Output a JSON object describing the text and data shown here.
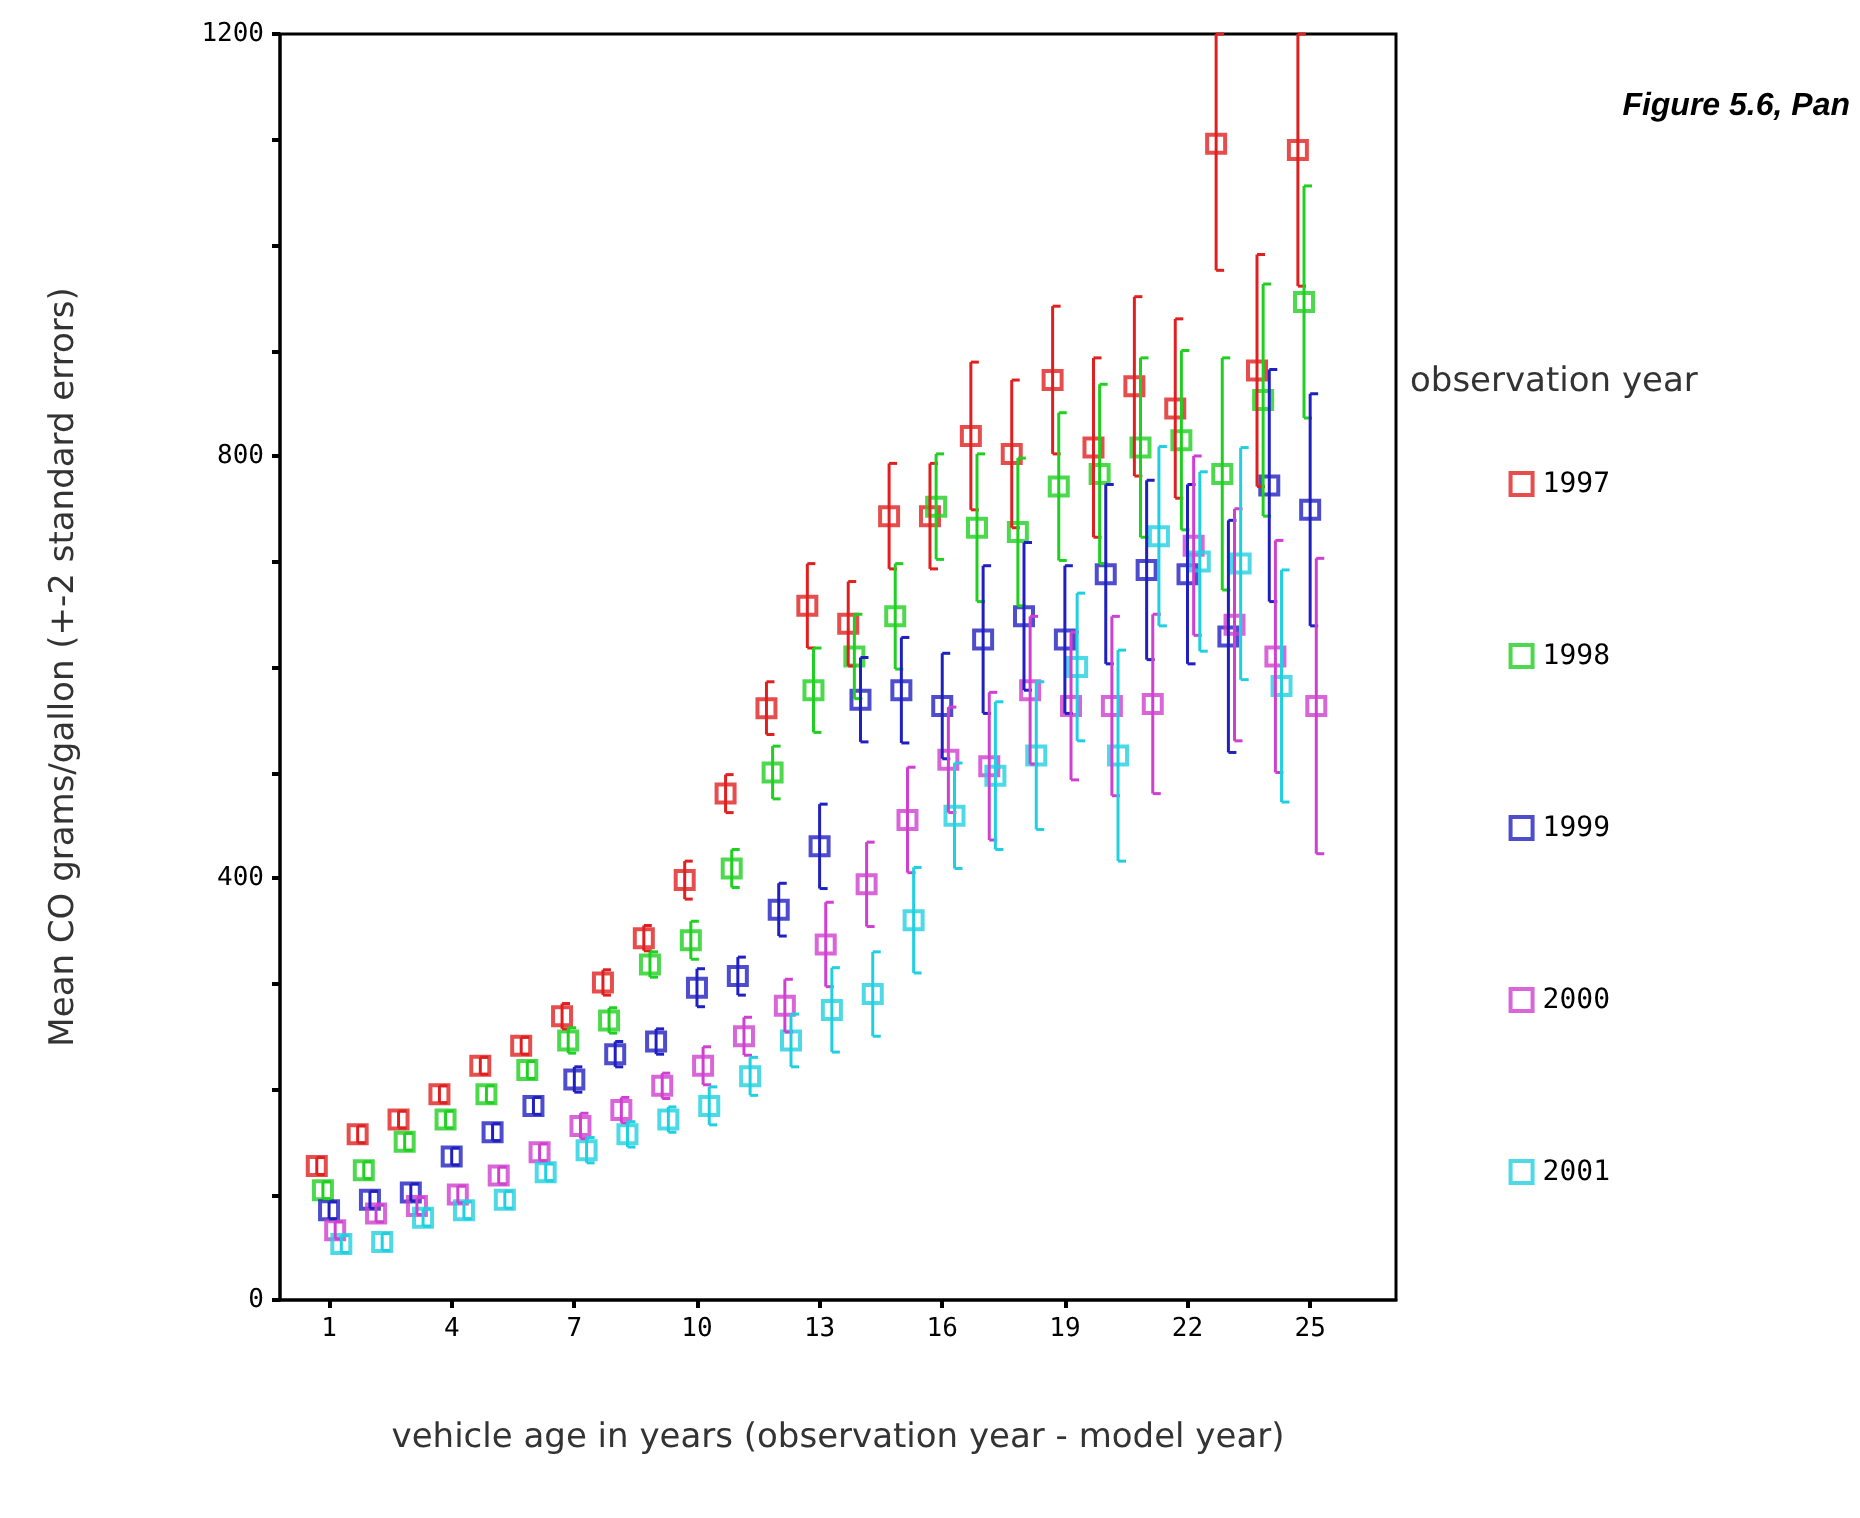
{
  "chart_data": {
    "type": "scatter",
    "title": "Figure 5.6, Pan",
    "xlabel": "vehicle age in years (observation year - model year)",
    "ylabel": "Mean CO grams/gallon (+-2 standard errors)",
    "legend_title": "observation year",
    "legend": "right",
    "marker": "square",
    "grid": false,
    "xlim": [
      -0.2,
      27.1
    ],
    "xticks": [
      1,
      4,
      7,
      10,
      13,
      16,
      19,
      22,
      25
    ],
    "ylim": [
      0,
      1200
    ],
    "yticks": [
      0,
      {
        "value": 100,
        "label": null
      },
      {
        "value": 200,
        "label": null
      },
      {
        "value": 300,
        "label": null
      },
      400,
      {
        "value": 500,
        "label": null
      },
      {
        "value": 600,
        "label": null
      },
      {
        "value": 700,
        "label": null
      },
      800,
      {
        "value": 900,
        "label": null
      },
      {
        "value": 1000,
        "label": null
      },
      {
        "value": 1100,
        "label": null
      },
      1200
    ],
    "series": [
      {
        "name": "1997",
        "color": "#e02020",
        "x": [
          0.7,
          1.7,
          2.7,
          3.7,
          4.7,
          5.7,
          6.7,
          7.7,
          8.7,
          9.7,
          10.7,
          11.7,
          12.7,
          13.7,
          14.7,
          15.7,
          16.7,
          17.7,
          18.7,
          19.7,
          20.7,
          21.7,
          22.7,
          23.7,
          24.7
        ],
        "values": [
          127,
          157,
          171,
          195,
          222,
          241,
          269,
          301,
          343,
          398,
          480,
          561,
          658,
          641,
          743,
          743,
          819,
          802,
          872,
          808,
          866,
          845,
          1096,
          881,
          1090
        ],
        "errors": [
          8,
          8,
          8,
          8,
          8,
          8,
          12,
          12,
          12,
          18,
          18,
          25,
          40,
          40,
          50,
          50,
          70,
          70,
          70,
          85,
          85,
          85,
          [
            976,
            1200
          ],
          110,
          [
            961,
            1200
          ]
        ]
      },
      {
        "name": "1998",
        "color": "#20d020",
        "x": [
          0.85,
          1.85,
          2.85,
          3.85,
          4.85,
          5.85,
          6.85,
          7.85,
          8.85,
          9.85,
          10.85,
          11.85,
          12.85,
          13.85,
          14.85,
          15.85,
          16.85,
          17.85,
          18.85,
          19.85,
          20.85,
          21.85,
          22.85,
          23.85,
          24.85
        ],
        "values": [
          104,
          123,
          150,
          171,
          195,
          218,
          246,
          265,
          318,
          341,
          409,
          500,
          578,
          610,
          648,
          752,
          732,
          728,
          771,
          783,
          808,
          815,
          783,
          853,
          946
        ],
        "errors": [
          8,
          8,
          8,
          8,
          8,
          8,
          12,
          12,
          12,
          18,
          18,
          25,
          40,
          40,
          50,
          50,
          70,
          70,
          70,
          85,
          85,
          85,
          110,
          110,
          110
        ]
      },
      {
        "name": "1999",
        "color": "#2020c0",
        "x": [
          1,
          2,
          3,
          4,
          5,
          6,
          7,
          8,
          9,
          10,
          11,
          12,
          13,
          14,
          15,
          16,
          17,
          18,
          19,
          20,
          21,
          22,
          23,
          24,
          25
        ],
        "values": [
          85,
          95,
          102,
          136,
          159,
          184,
          209,
          233,
          245,
          296,
          307,
          370,
          430,
          569,
          578,
          563,
          626,
          648,
          626,
          688,
          692,
          688,
          629,
          772,
          749
        ],
        "errors": [
          8,
          8,
          8,
          8,
          8,
          8,
          12,
          12,
          12,
          18,
          18,
          25,
          40,
          40,
          50,
          50,
          70,
          70,
          70,
          85,
          85,
          85,
          110,
          110,
          110
        ]
      },
      {
        "name": "2000",
        "color": "#d040d0",
        "x": [
          1.15,
          2.15,
          3.15,
          4.15,
          5.15,
          6.15,
          7.15,
          8.15,
          9.15,
          10.15,
          11.15,
          12.15,
          13.15,
          14.15,
          15.15,
          16.15,
          17.15,
          18.15,
          19.15,
          20.15,
          21.15,
          22.15,
          23.15,
          24.15,
          25.15
        ],
        "values": [
          66,
          82,
          89,
          100,
          118,
          140,
          165,
          180,
          203,
          222,
          250,
          279,
          337,
          394,
          455,
          512,
          506,
          578,
          563,
          563,
          565,
          715,
          640,
          610,
          563
        ],
        "errors": [
          8,
          8,
          8,
          8,
          8,
          8,
          12,
          12,
          12,
          18,
          18,
          25,
          40,
          40,
          50,
          50,
          70,
          70,
          70,
          85,
          85,
          85,
          110,
          110,
          140
        ]
      },
      {
        "name": "2001",
        "color": "#20d0e0",
        "x": [
          1.3,
          2.3,
          3.3,
          4.3,
          5.3,
          6.3,
          7.3,
          8.3,
          9.3,
          10.3,
          11.3,
          12.3,
          13.3,
          14.3,
          15.3,
          16.3,
          17.3,
          18.3,
          19.3,
          20.3,
          21.3,
          22.3,
          23.3,
          24.3
        ],
        "values": [
          53,
          55,
          78,
          85,
          95,
          121,
          142,
          157,
          171,
          184,
          212,
          246,
          275,
          290,
          360,
          459,
          497,
          516,
          600,
          516,
          724,
          700,
          698,
          582
        ],
        "errors": [
          8,
          8,
          8,
          8,
          8,
          8,
          12,
          12,
          12,
          18,
          18,
          25,
          40,
          40,
          50,
          50,
          70,
          70,
          70,
          100,
          85,
          85,
          110,
          110
        ]
      }
    ]
  }
}
